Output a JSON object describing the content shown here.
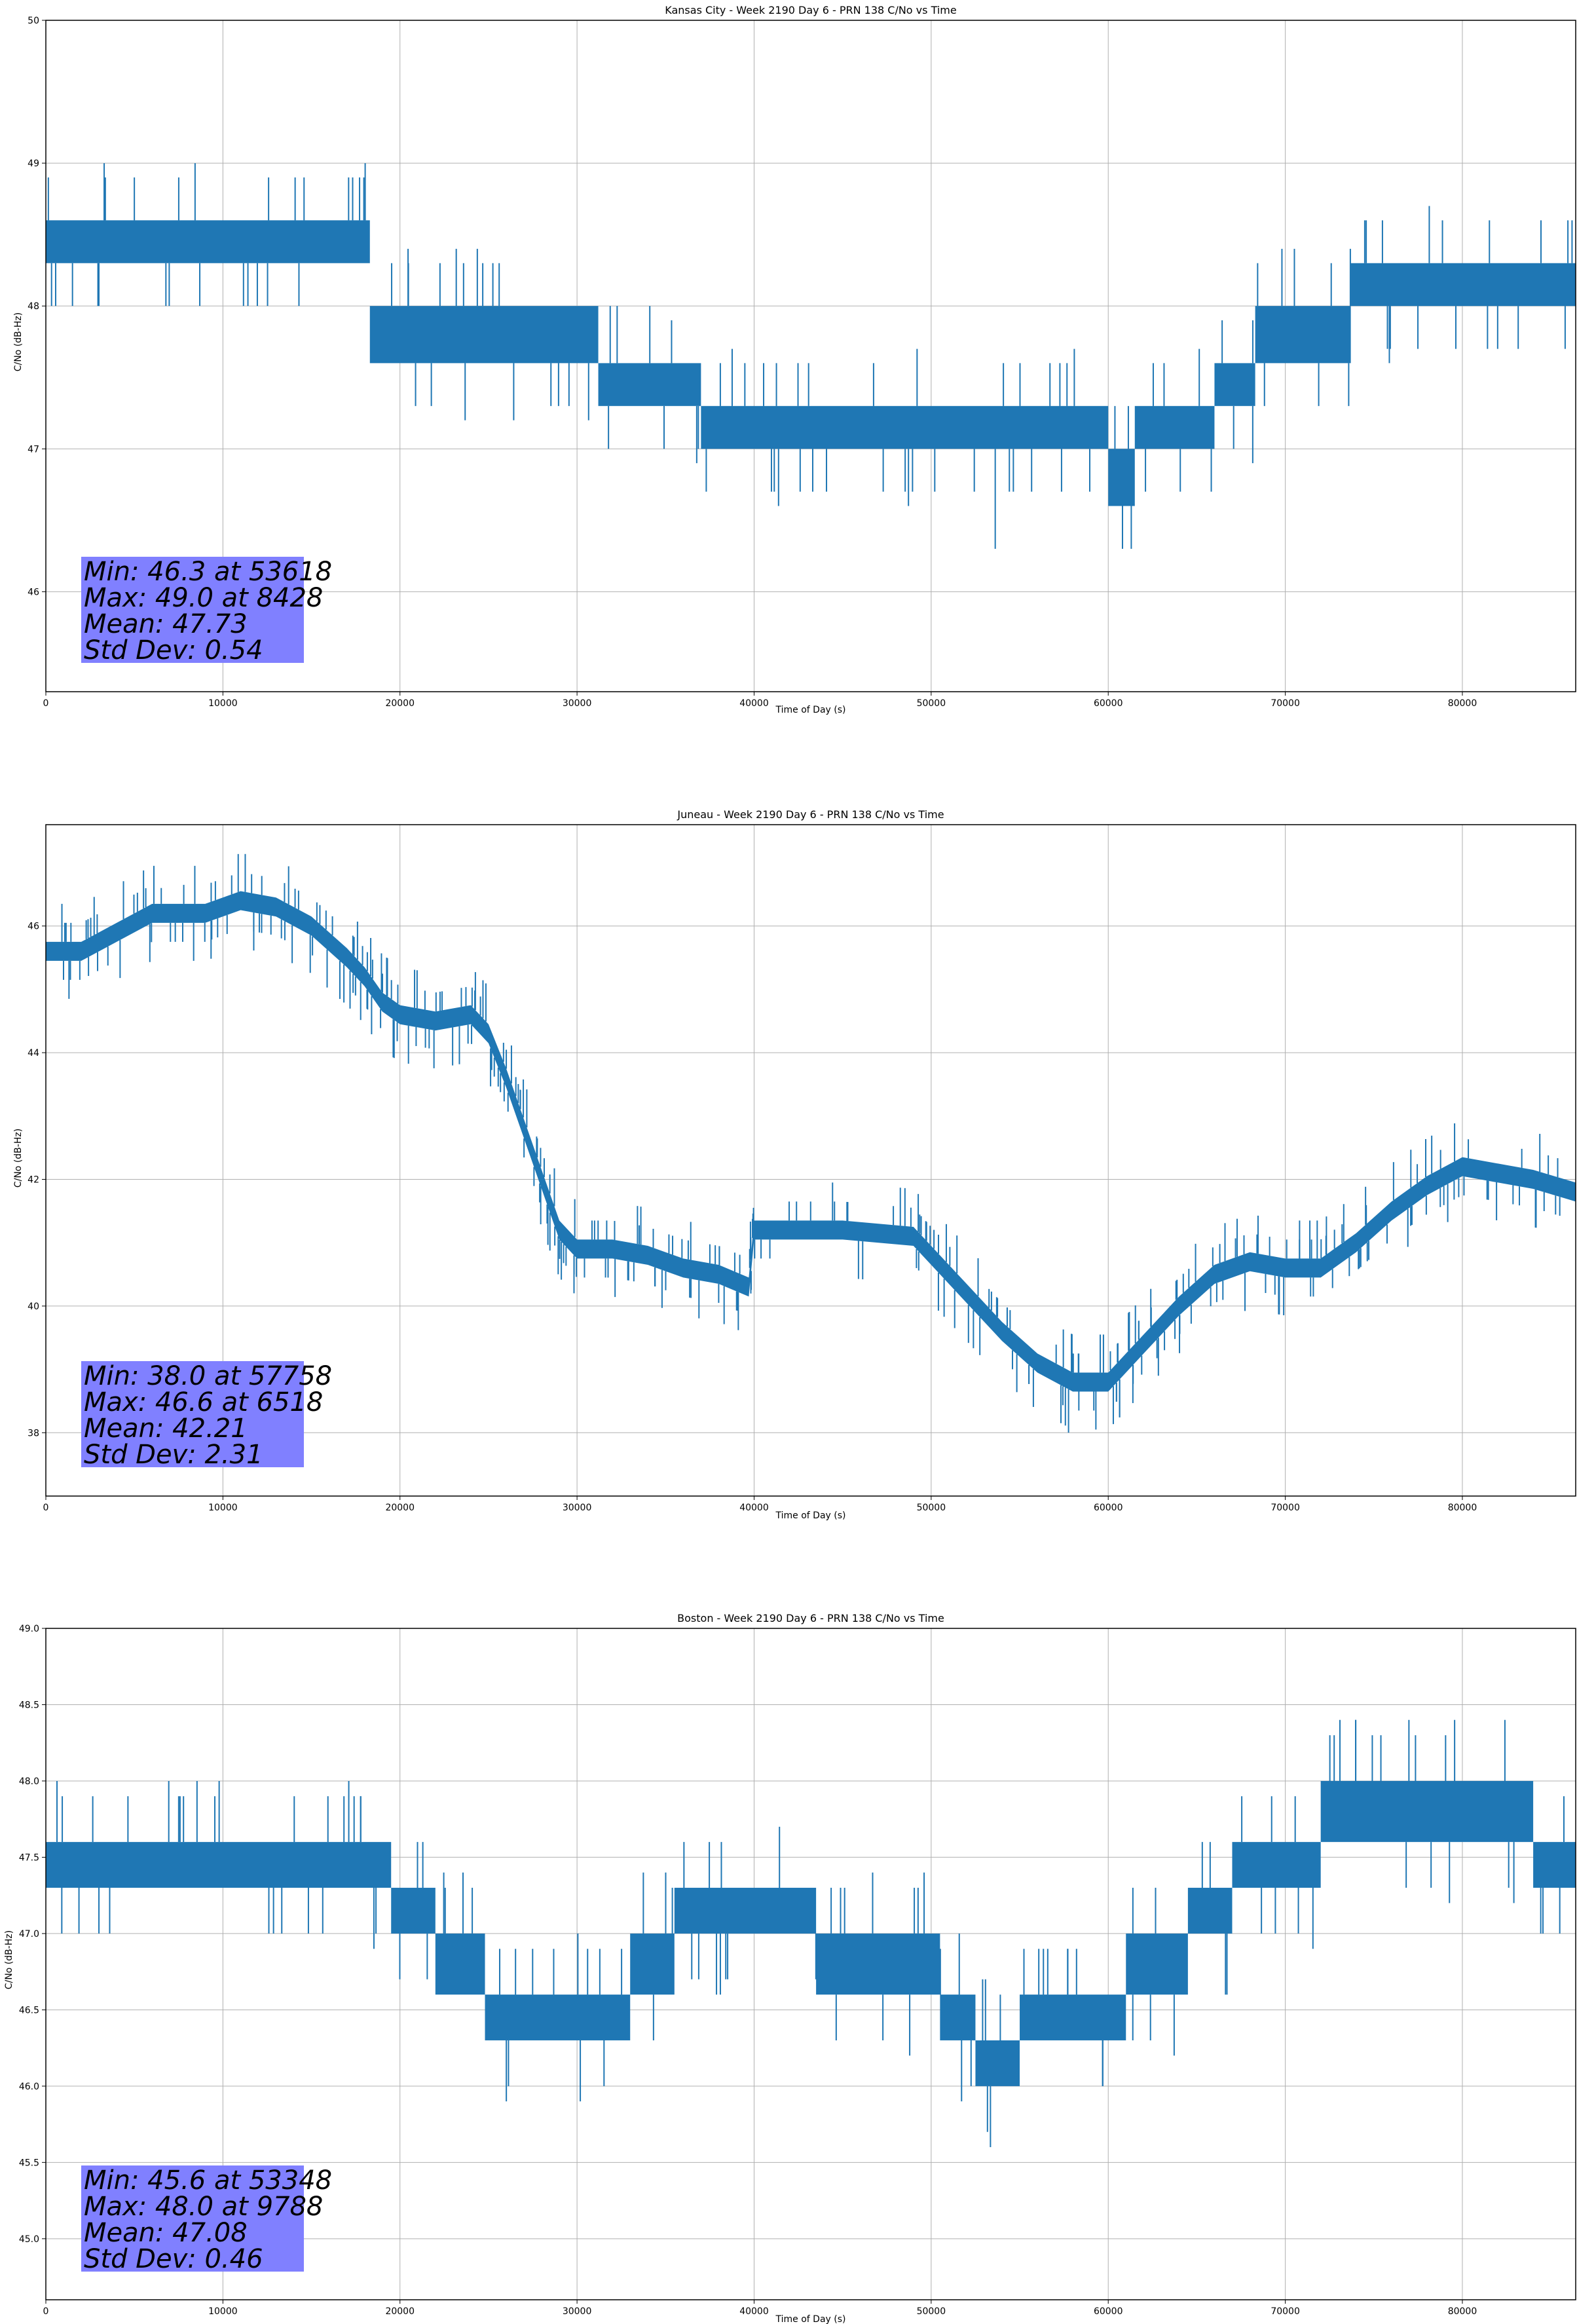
{
  "chart_data": [
    {
      "type": "line",
      "title": "Kansas City - Week 2190 Day 6 - PRN 138 C/No vs Time",
      "xlabel": "Time of Day (s)",
      "ylabel": "C/No (dB-Hz)",
      "xlim": [
        0,
        86400
      ],
      "ylim": [
        45.3,
        50
      ],
      "xticks": [
        0,
        10000,
        20000,
        30000,
        40000,
        50000,
        60000,
        70000,
        80000
      ],
      "yticks": [
        46,
        47,
        48,
        49,
        50
      ],
      "grid": true,
      "line_color": "#1f77b4",
      "segments": [
        {
          "x": [
            0,
            18300
          ],
          "low": 48.3,
          "high": 48.6
        },
        {
          "x": [
            18300,
            31200
          ],
          "low": 47.6,
          "high": 48.0
        },
        {
          "x": [
            31200,
            37000
          ],
          "low": 47.3,
          "high": 47.6
        },
        {
          "x": [
            37000,
            60000
          ],
          "low": 47.0,
          "high": 47.3
        },
        {
          "x": [
            60000,
            61500
          ],
          "low": 46.6,
          "high": 47.0
        },
        {
          "x": [
            61500,
            66000
          ],
          "low": 47.0,
          "high": 47.3
        },
        {
          "x": [
            66000,
            68300
          ],
          "low": 47.3,
          "high": 47.6
        },
        {
          "x": [
            68300,
            73700
          ],
          "low": 47.6,
          "high": 48.0
        },
        {
          "x": [
            73700,
            86400
          ],
          "low": 48.0,
          "high": 48.3
        }
      ],
      "min_point": [
        53618,
        46.3
      ],
      "max_point": [
        8428,
        49.0
      ],
      "stats": [
        "Min: 46.3 at 53618",
        "Max: 49.0 at 8428",
        "Mean: 47.73",
        "Std Dev: 0.54"
      ],
      "stats_box_color": "#8080ff"
    },
    {
      "type": "line",
      "title": "Juneau - Week 2190 Day 6 - PRN 138 C/No vs Time",
      "xlabel": "Time of Day (s)",
      "ylabel": "C/No (dB-Hz)",
      "xlim": [
        0,
        86400
      ],
      "ylim": [
        37.0,
        47.6
      ],
      "xticks": [
        0,
        10000,
        20000,
        30000,
        40000,
        50000,
        60000,
        70000,
        80000
      ],
      "yticks": [
        38,
        40,
        42,
        44,
        46
      ],
      "grid": true,
      "line_color": "#1f77b4",
      "points": [
        [
          0,
          45.6
        ],
        [
          2000,
          45.6
        ],
        [
          4000,
          45.9
        ],
        [
          6000,
          46.2
        ],
        [
          9000,
          46.2
        ],
        [
          11000,
          46.4
        ],
        [
          13000,
          46.3
        ],
        [
          15000,
          46.0
        ],
        [
          17000,
          45.5
        ],
        [
          18000,
          45.2
        ],
        [
          19000,
          44.8
        ],
        [
          20000,
          44.6
        ],
        [
          22000,
          44.5
        ],
        [
          24000,
          44.6
        ],
        [
          25000,
          44.3
        ],
        [
          26000,
          43.6
        ],
        [
          27000,
          42.8
        ],
        [
          28000,
          42.0
        ],
        [
          29000,
          41.2
        ],
        [
          30000,
          40.9
        ],
        [
          32000,
          40.9
        ],
        [
          34000,
          40.8
        ],
        [
          36000,
          40.6
        ],
        [
          38000,
          40.5
        ],
        [
          39700,
          40.3
        ],
        [
          40000,
          41.2
        ],
        [
          45000,
          41.2
        ],
        [
          49000,
          41.1
        ],
        [
          50000,
          40.8
        ],
        [
          52000,
          40.2
        ],
        [
          54000,
          39.6
        ],
        [
          56000,
          39.1
        ],
        [
          58000,
          38.8
        ],
        [
          60000,
          38.8
        ],
        [
          61000,
          39.1
        ],
        [
          62000,
          39.4
        ],
        [
          64000,
          40.0
        ],
        [
          66000,
          40.5
        ],
        [
          68000,
          40.7
        ],
        [
          70000,
          40.6
        ],
        [
          72000,
          40.6
        ],
        [
          74000,
          41.0
        ],
        [
          76000,
          41.5
        ],
        [
          78000,
          41.9
        ],
        [
          80000,
          42.2
        ],
        [
          84000,
          42.0
        ],
        [
          86400,
          41.8
        ]
      ],
      "band": 0.3,
      "min_point": [
        57758,
        38.0
      ],
      "max_point": [
        6518,
        46.6
      ],
      "stats": [
        "Min: 38.0 at 57758",
        "Max: 46.6 at 6518",
        "Mean: 42.21",
        "Std Dev: 2.31"
      ],
      "stats_box_color": "#8080ff"
    },
    {
      "type": "line",
      "title": "Boston - Week 2190 Day 6 - PRN 138 C/No vs Time",
      "xlabel": "Time of Day (s)",
      "ylabel": "C/No (dB-Hz)",
      "xlim": [
        0,
        86400
      ],
      "ylim": [
        44.6,
        49.0
      ],
      "xticks": [
        0,
        10000,
        20000,
        30000,
        40000,
        50000,
        60000,
        70000,
        80000
      ],
      "yticks": [
        45.0,
        45.5,
        46.0,
        46.5,
        47.0,
        47.5,
        48.0,
        48.5,
        49.0
      ],
      "grid": true,
      "line_color": "#1f77b4",
      "segments": [
        {
          "x": [
            0,
            19500
          ],
          "low": 47.3,
          "high": 47.6
        },
        {
          "x": [
            19500,
            22000
          ],
          "low": 47.0,
          "high": 47.3
        },
        {
          "x": [
            22000,
            24800
          ],
          "low": 46.6,
          "high": 47.0
        },
        {
          "x": [
            24800,
            33000
          ],
          "low": 46.3,
          "high": 46.6
        },
        {
          "x": [
            33000,
            35500
          ],
          "low": 46.6,
          "high": 47.0
        },
        {
          "x": [
            35500,
            43500
          ],
          "low": 47.0,
          "high": 47.3
        },
        {
          "x": [
            43500,
            50500
          ],
          "low": 46.6,
          "high": 47.0
        },
        {
          "x": [
            50500,
            52500
          ],
          "low": 46.3,
          "high": 46.6
        },
        {
          "x": [
            52500,
            55000
          ],
          "low": 46.0,
          "high": 46.3
        },
        {
          "x": [
            55000,
            61000
          ],
          "low": 46.3,
          "high": 46.6
        },
        {
          "x": [
            61000,
            64500
          ],
          "low": 46.6,
          "high": 47.0
        },
        {
          "x": [
            64500,
            67000
          ],
          "low": 47.0,
          "high": 47.3
        },
        {
          "x": [
            67000,
            72000
          ],
          "low": 47.3,
          "high": 47.6
        },
        {
          "x": [
            72000,
            84000
          ],
          "low": 47.6,
          "high": 48.0
        },
        {
          "x": [
            84000,
            86400
          ],
          "low": 47.3,
          "high": 47.6
        }
      ],
      "min_point": [
        53348,
        45.6
      ],
      "max_point": [
        9788,
        48.0
      ],
      "stats": [
        "Min: 45.6 at 53348",
        "Max: 48.0 at 9788",
        "Mean: 47.08",
        "Std Dev: 0.46"
      ],
      "stats_box_color": "#8080ff"
    }
  ]
}
